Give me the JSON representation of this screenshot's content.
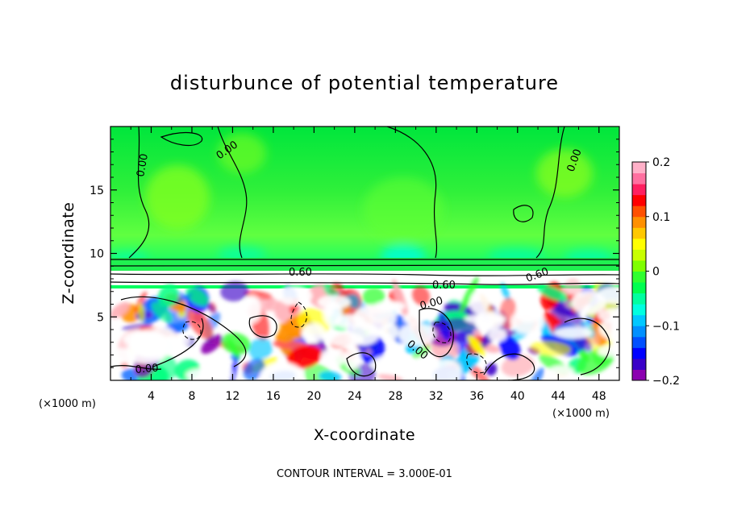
{
  "chart_data": {
    "type": "heatmap",
    "title": "disturbunce of potential temperature",
    "xlabel": "X-coordinate",
    "ylabel": "Z-coordinate",
    "x_unit_label": "(×1000 m)",
    "x_unit_label_right": "(×1000 m)",
    "xlim": [
      0,
      50
    ],
    "ylim": [
      0,
      20
    ],
    "x_ticks": [
      4,
      8,
      12,
      16,
      20,
      24,
      28,
      32,
      36,
      40,
      44,
      48
    ],
    "y_ticks": [
      5,
      10,
      15
    ],
    "colorbar": {
      "range": [
        -0.2,
        0.2
      ],
      "tick_values": [
        -0.2,
        -0.1,
        0,
        0.1,
        0.2
      ],
      "tick_labels": [
        "−0.2",
        "−0.1",
        "0",
        "0.1",
        "0.2"
      ],
      "colors": [
        "#8b00b0",
        "#3a00c8",
        "#0000ff",
        "#0050ff",
        "#0090ff",
        "#00c8ff",
        "#00ffe0",
        "#00ffa0",
        "#00ff50",
        "#30ff30",
        "#7fff00",
        "#c8ff00",
        "#ffff00",
        "#ffc800",
        "#ff9000",
        "#ff5000",
        "#ff0000",
        "#ff2060",
        "#ff70a0",
        "#ffb0c8"
      ]
    },
    "contour_labels": [
      "0.00",
      "0.00",
      "0.00",
      "0.60",
      "0.60",
      "0.60",
      "0.00",
      "0.00",
      "0.00"
    ],
    "footer": "CONTOUR INTERVAL = 3.000E-01"
  }
}
